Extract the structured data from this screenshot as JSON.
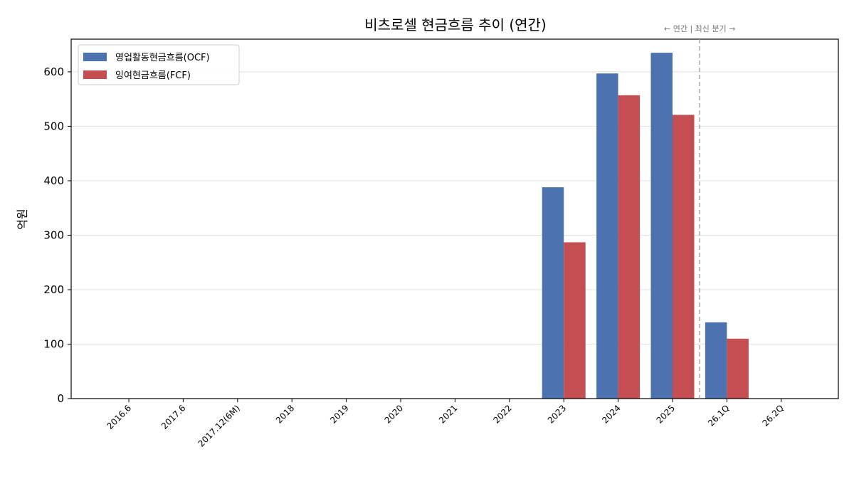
{
  "chart_data": {
    "type": "bar",
    "title": "비츠로셀 현금흐름 추이 (연간)",
    "xlabel": "",
    "ylabel": "억원",
    "ylim": [
      0,
      660
    ],
    "yticks": [
      0,
      100,
      200,
      300,
      400,
      500,
      600
    ],
    "grid": "horizontal",
    "legend_position": "top-left",
    "categories": [
      "2016.6",
      "2017.6",
      "2017.12(6M)",
      "2018",
      "2019",
      "2020",
      "2021",
      "2022",
      "2023",
      "2024",
      "2025",
      "26.1Q",
      "26.2Q"
    ],
    "series": [
      {
        "name": "영업활동현금흐름(OCF)",
        "color": "#4c72b0",
        "values": [
          0,
          0,
          0,
          0,
          0,
          0,
          0,
          0,
          388,
          597,
          635,
          140,
          0
        ]
      },
      {
        "name": "잉여현금흐름(FCF)",
        "color": "#c44e52",
        "values": [
          0,
          0,
          0,
          0,
          0,
          0,
          0,
          0,
          287,
          557,
          521,
          110,
          0
        ]
      }
    ],
    "annotation": "← 연간 | 최신 분기 →"
  }
}
